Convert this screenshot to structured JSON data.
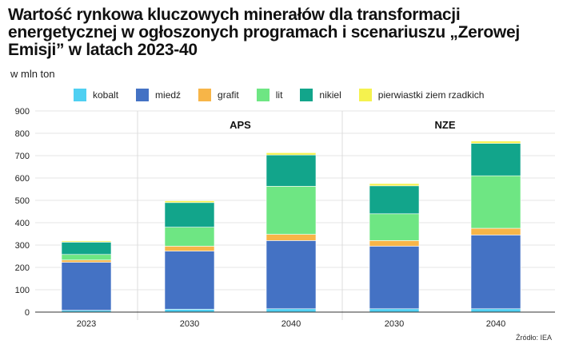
{
  "title": "Wartość rynkowa kluczowych minerałów dla transformacji energetycznej w ogłoszonych programach i scenariuszu „Zerowej Emisji” w latach 2023-40",
  "unit_label": "w mln ton",
  "source": "Źródło: IEA",
  "colors": {
    "kobalt": "#4fd0f2",
    "miedz": "#4472c4",
    "grafit": "#f7b548",
    "lit": "#6ee683",
    "nikiel": "#12a58b",
    "ree": "#f5f24e"
  },
  "chart_data": {
    "type": "bar",
    "stacked": true,
    "categories": [
      "2023",
      "2030",
      "2040",
      "2030",
      "2040"
    ],
    "groups": [
      {
        "label": "",
        "categories": [
          0
        ]
      },
      {
        "label": "APS",
        "categories": [
          1,
          2
        ]
      },
      {
        "label": "NZE",
        "categories": [
          3,
          4
        ]
      }
    ],
    "series": [
      {
        "name": "kobalt",
        "color_key": "kobalt",
        "values": [
          8,
          13,
          15,
          15,
          15
        ]
      },
      {
        "name": "miedź",
        "color_key": "miedz",
        "values": [
          215,
          260,
          305,
          280,
          330
        ]
      },
      {
        "name": "grafit",
        "color_key": "grafit",
        "values": [
          10,
          22,
          28,
          25,
          30
        ]
      },
      {
        "name": "lit",
        "color_key": "lit",
        "values": [
          25,
          85,
          215,
          120,
          235
        ]
      },
      {
        "name": "nikiel",
        "color_key": "nikiel",
        "values": [
          55,
          110,
          140,
          125,
          145
        ]
      },
      {
        "name": "pierwiastki ziem rzadkich",
        "color_key": "ree",
        "values": [
          5,
          8,
          10,
          10,
          10
        ]
      }
    ],
    "yticks": [
      0,
      100,
      200,
      300,
      400,
      500,
      600,
      700,
      800,
      900
    ],
    "ylim": [
      0,
      900
    ],
    "grid": true,
    "legend": "top"
  }
}
